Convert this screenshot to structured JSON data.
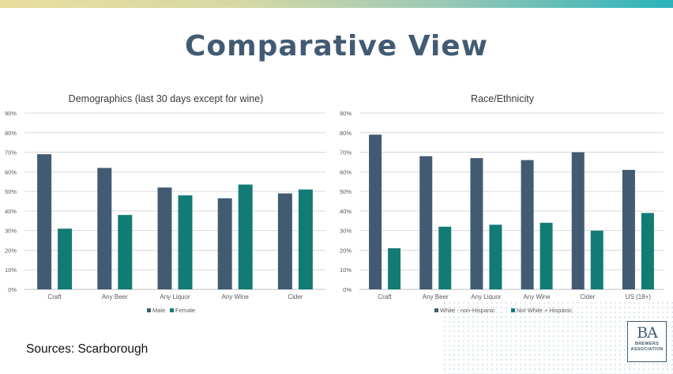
{
  "header": {
    "title": "Comparative View"
  },
  "footer": {
    "sources": "Sources: Scarborough"
  },
  "logo": {
    "mark": "BA",
    "line1": "BREWERS",
    "line2": "ASSOCIATION"
  },
  "colors": {
    "series1": "#435b72",
    "series2": "#127b76",
    "title": "#425b72"
  },
  "chart_data": [
    {
      "type": "bar",
      "title": "Demographics (last 30 days except for wine)",
      "categories": [
        "Craft",
        "Any Beer",
        "Any Liquor",
        "Any Wine",
        "Cider"
      ],
      "series": [
        {
          "name": "Male",
          "values": [
            69,
            62,
            52,
            46.5,
            49
          ]
        },
        {
          "name": "Female",
          "values": [
            31,
            38,
            48,
            53.5,
            51
          ]
        }
      ],
      "yticks": [
        "0%",
        "10%",
        "20%",
        "30%",
        "40%",
        "50%",
        "60%",
        "70%",
        "80%",
        "90%"
      ],
      "ylim": [
        0,
        90
      ],
      "grid": true,
      "legend": "bottom"
    },
    {
      "type": "bar",
      "title": "Race/Ethnicity",
      "categories": [
        "Craft",
        "Any Beer",
        "Any Liquor",
        "Any Wine",
        "Cider",
        "US (18+)"
      ],
      "series": [
        {
          "name": "White - non-Hispanic",
          "values": [
            79,
            68,
            67,
            66,
            70,
            61
          ]
        },
        {
          "name": "Not White + Hispanic",
          "values": [
            21,
            32,
            33,
            34,
            30,
            39
          ]
        }
      ],
      "yticks": [
        "0%",
        "10%",
        "20%",
        "30%",
        "40%",
        "50%",
        "60%",
        "70%",
        "80%",
        "90%"
      ],
      "ylim": [
        0,
        90
      ],
      "grid": true,
      "legend": "bottom"
    }
  ]
}
